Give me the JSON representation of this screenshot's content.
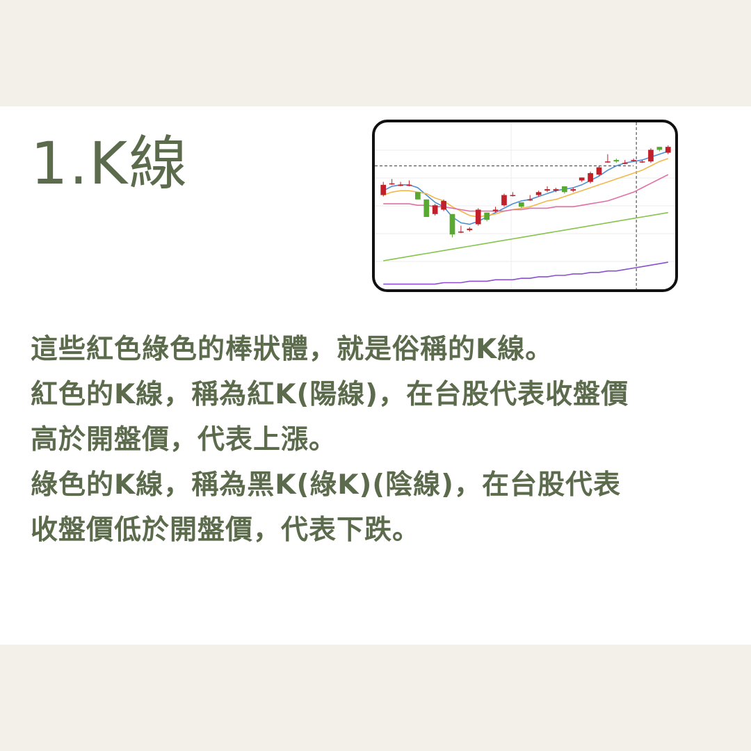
{
  "title": "1.K線",
  "paragraph_lines": [
    "這些紅色綠色的棒狀體，就是俗稱的K線。",
    "紅色的K線，稱為紅K(陽線)，在台股代表收盤價",
    "高於開盤價，代表上漲。",
    "綠色的K線，稱為黑K(綠K)(陰線)，在台股代表",
    "收盤價低於開盤價，代表下跌。"
  ],
  "chart_data": {
    "type": "candlestick",
    "title": "",
    "xlabel": "",
    "ylabel": "",
    "ylim": [
      0,
      100
    ],
    "colors": {
      "up": "#c0202a",
      "down": "#59a832",
      "ma_short": "#4d8fd6",
      "ma_mid": "#f2b84b",
      "ma_long": "#e36ea6",
      "ma_longer": "#86c44b",
      "ma_longest": "#8a4fd1"
    },
    "candles": [
      {
        "o": 55,
        "c": 62,
        "h": 64,
        "l": 54
      },
      {
        "o": 63,
        "c": 63,
        "h": 66,
        "l": 62
      },
      {
        "o": 62,
        "c": 62,
        "h": 64,
        "l": 61
      },
      {
        "o": 62,
        "c": 62,
        "h": 65,
        "l": 61
      },
      {
        "o": 57,
        "c": 52,
        "h": 57,
        "l": 52
      },
      {
        "o": 52,
        "c": 40,
        "h": 52,
        "l": 40
      },
      {
        "o": 42,
        "c": 48,
        "h": 49,
        "l": 41
      },
      {
        "o": 45,
        "c": 51,
        "h": 52,
        "l": 44
      },
      {
        "o": 42,
        "c": 28,
        "h": 42,
        "l": 26
      },
      {
        "o": 30,
        "c": 30,
        "h": 34,
        "l": 29
      },
      {
        "o": 31,
        "c": 32,
        "h": 33,
        "l": 30
      },
      {
        "o": 35,
        "c": 45,
        "h": 46,
        "l": 34
      },
      {
        "o": 43,
        "c": 38,
        "h": 43,
        "l": 37
      },
      {
        "o": 44,
        "c": 45,
        "h": 47,
        "l": 43
      },
      {
        "o": 48,
        "c": 55,
        "h": 56,
        "l": 47
      },
      {
        "o": 55,
        "c": 55,
        "h": 57,
        "l": 54
      },
      {
        "o": 50,
        "c": 47,
        "h": 50,
        "l": 46
      },
      {
        "o": 52,
        "c": 52,
        "h": 55,
        "l": 51
      },
      {
        "o": 55,
        "c": 57,
        "h": 58,
        "l": 54
      },
      {
        "o": 58,
        "c": 59,
        "h": 61,
        "l": 57
      },
      {
        "o": 58,
        "c": 59,
        "h": 60,
        "l": 57
      },
      {
        "o": 61,
        "c": 57,
        "h": 61,
        "l": 56
      },
      {
        "o": 58,
        "c": 59,
        "h": 60,
        "l": 57
      },
      {
        "o": 65,
        "c": 67,
        "h": 67,
        "l": 64
      },
      {
        "o": 64,
        "c": 70,
        "h": 71,
        "l": 63
      },
      {
        "o": 69,
        "c": 74,
        "h": 75,
        "l": 68
      },
      {
        "o": 78,
        "c": 78,
        "h": 83,
        "l": 77
      },
      {
        "o": 79,
        "c": 78,
        "h": 80,
        "l": 77
      },
      {
        "o": 77,
        "c": 77,
        "h": 79,
        "l": 76
      },
      {
        "o": 79,
        "c": 79,
        "h": 80,
        "l": 78
      },
      {
        "o": 78,
        "c": 78,
        "h": 79,
        "l": 77
      },
      {
        "o": 78,
        "c": 86,
        "h": 87,
        "l": 77
      },
      {
        "o": 88,
        "c": 86,
        "h": 88,
        "l": 85
      },
      {
        "o": 84,
        "c": 88,
        "h": 89,
        "l": 83
      }
    ],
    "moving_averages": [
      {
        "values": [
          58,
          61,
          62,
          62,
          60,
          55,
          50,
          47,
          40,
          36,
          35,
          37,
          40,
          43,
          46,
          49,
          51,
          52,
          54,
          56,
          58,
          59,
          60,
          62,
          65,
          68,
          72,
          75,
          77,
          78,
          79,
          81,
          83,
          85
        ]
      },
      {
        "values": [
          55,
          57,
          58,
          58,
          57,
          56,
          53,
          51,
          47,
          44,
          41,
          40,
          41,
          42,
          44,
          45,
          46,
          47,
          49,
          51,
          52,
          54,
          56,
          58,
          60,
          62,
          64,
          66,
          68,
          70,
          72,
          75,
          78,
          80
        ]
      },
      {
        "values": [
          49,
          49,
          49,
          49,
          48,
          48,
          47,
          47,
          46,
          45,
          44,
          44,
          44,
          44,
          44,
          45,
          45,
          46,
          46,
          46,
          47,
          47,
          47,
          48,
          49,
          50,
          51,
          53,
          55,
          57,
          60,
          63,
          66,
          69
        ]
      },
      {
        "values": [
          10,
          11,
          12,
          13,
          14,
          15,
          16,
          17,
          18,
          19,
          20,
          21,
          22,
          23,
          24,
          25,
          26,
          27,
          28,
          29,
          30,
          31,
          32,
          33,
          34,
          35,
          36,
          37,
          38,
          39,
          40,
          41,
          42,
          43
        ]
      },
      {
        "values": [
          -6,
          -6,
          -6,
          -6,
          -6,
          -6,
          -6,
          -5,
          -5,
          -5,
          -4,
          -4,
          -4,
          -3,
          -3,
          -3,
          -2,
          -2,
          -1,
          -1,
          0,
          0,
          1,
          1,
          2,
          2,
          3,
          3,
          4,
          5,
          6,
          7,
          8,
          9
        ]
      }
    ],
    "reference_price": 75,
    "vertical_marker_index": 29
  }
}
